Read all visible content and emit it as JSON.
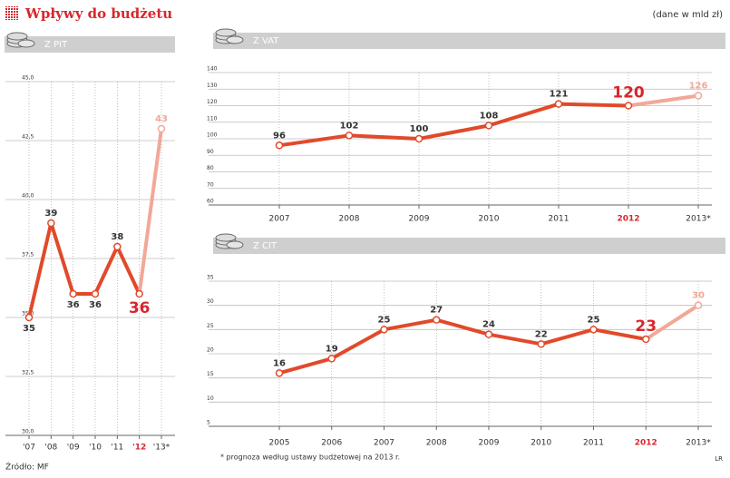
{
  "header": {
    "title": "Wpływy do budżetu",
    "unit_note": "(dane w mld zł)"
  },
  "chart_data": [
    {
      "type": "line",
      "title": "Z PIT",
      "categories": [
        "'07",
        "'08",
        "'09",
        "'10",
        "'11",
        "'12",
        "'13*"
      ],
      "values": [
        35,
        39,
        36,
        36,
        38,
        36,
        43
      ],
      "color": "#e04a2a",
      "forecast_color": "#f2a898",
      "highlight_color": "#d9262b",
      "ylim": [
        30,
        45
      ],
      "yticks": [
        {
          "value": 30,
          "label": "30,0"
        },
        {
          "value": 32.5,
          "label": "32,5"
        },
        {
          "value": 35,
          "label": "35,0"
        },
        {
          "value": 37.5,
          "label": "37,5"
        },
        {
          "value": 40,
          "label": "40,0"
        },
        {
          "value": 42.5,
          "label": "42,5"
        },
        {
          "value": 45,
          "label": "45,0"
        }
      ],
      "grid": true
    },
    {
      "type": "line",
      "title": "Z VAT",
      "categories": [
        "2007",
        "2008",
        "2009",
        "2010",
        "2011",
        "2012",
        "2013*"
      ],
      "values": [
        96,
        102,
        100,
        108,
        121,
        120,
        126
      ],
      "color": "#e04a2a",
      "forecast_color": "#f2a898",
      "highlight_color": "#d9262b",
      "ylim": [
        60,
        140
      ],
      "yticks": [
        60,
        70,
        80,
        90,
        100,
        110,
        120,
        130,
        140
      ],
      "grid": true
    },
    {
      "type": "line",
      "title": "Z CIT",
      "categories": [
        "2005",
        "2006",
        "2007",
        "2008",
        "2009",
        "2010",
        "2011",
        "2012",
        "2013*"
      ],
      "values": [
        16,
        19,
        25,
        27,
        24,
        22,
        25,
        23,
        30
      ],
      "color": "#e04a2a",
      "forecast_color": "#f2a898",
      "highlight_color": "#d9262b",
      "ylim": [
        5,
        35
      ],
      "yticks": [
        5,
        10,
        15,
        20,
        25,
        30,
        35
      ],
      "grid": true
    }
  ],
  "footer": {
    "footnote": "* prognoza według ustawy budżetowej na 2013 r.",
    "source": "Źródło: MF",
    "credit": "LR"
  }
}
